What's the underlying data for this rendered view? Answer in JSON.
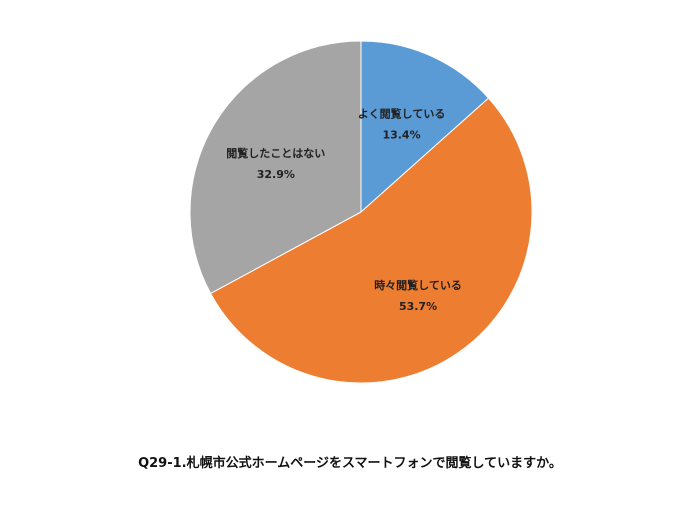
{
  "chart_data": {
    "type": "pie",
    "title": "Q29-1.札幌市公式ホームページをスマートフォンで閲覧していますか。",
    "slices": [
      {
        "label": "よく閲覧している",
        "value": 13.4,
        "value_label": "13.4%",
        "color": "#5b9bd5"
      },
      {
        "label": "時々閲覧している",
        "value": 53.7,
        "value_label": "53.7%",
        "color": "#ed7d31"
      },
      {
        "label": "閲覧したことはない",
        "value": 32.9,
        "value_label": "32.9%",
        "color": "#a5a5a5"
      }
    ],
    "start_angle": "12 o'clock",
    "direction": "clockwise",
    "legend": "none"
  }
}
